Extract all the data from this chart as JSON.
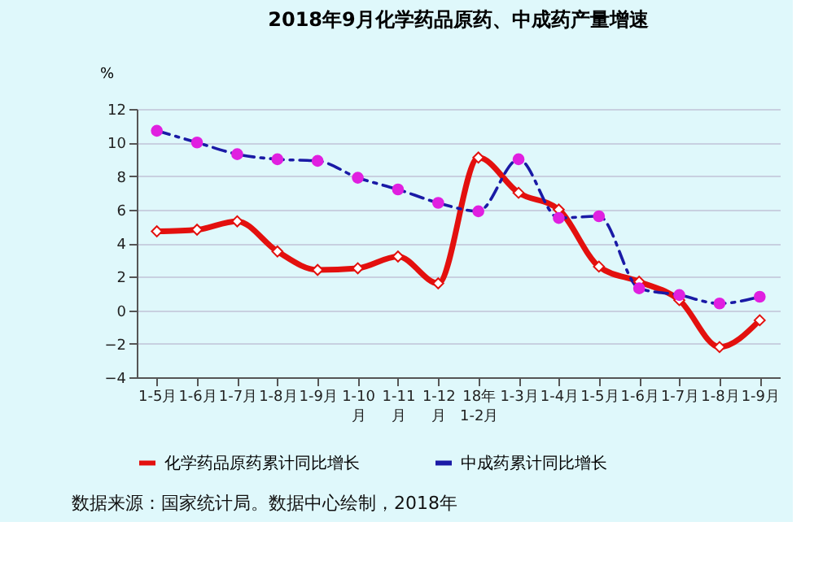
{
  "chart_data": {
    "type": "line",
    "title": "2018年9月化学药品原药、中成药产量增速",
    "ylabel": "%",
    "categories": [
      "1-5月",
      "1-6月",
      "1-7月",
      "1-8月",
      "1-9月",
      "1-10月",
      "1-11月",
      "1-12月",
      "18年1-2月",
      "1-3月",
      "1-4月",
      "1-5月",
      "1-6月",
      "1-7月",
      "1-8月",
      "1-9月"
    ],
    "series": [
      {
        "name": "化学药品原药累计同比增长",
        "color": "#e3100e",
        "marker": "diamond",
        "line_style": "solid",
        "values": [
          4.7,
          4.8,
          5.3,
          3.5,
          2.4,
          2.5,
          3.2,
          1.6,
          9.1,
          7.0,
          6.0,
          2.6,
          1.7,
          0.6,
          -2.2,
          -0.6
        ]
      },
      {
        "name": "中成药累计同比增长",
        "color": "#1a1aa6",
        "marker": "circle",
        "line_style": "dashed",
        "values": [
          10.7,
          10.0,
          9.3,
          9.0,
          8.9,
          7.9,
          7.2,
          6.4,
          5.9,
          9.0,
          5.5,
          5.6,
          1.3,
          0.9,
          0.4,
          0.8
        ]
      }
    ],
    "ylim": [
      -4,
      12
    ],
    "yticks": [
      -4,
      -2,
      0,
      2,
      4,
      6,
      8,
      10,
      12
    ],
    "grid": "y",
    "legend": "bottom",
    "annotations": [
      "数据来源：国家统计局。数据中心绘制，2018年"
    ]
  }
}
